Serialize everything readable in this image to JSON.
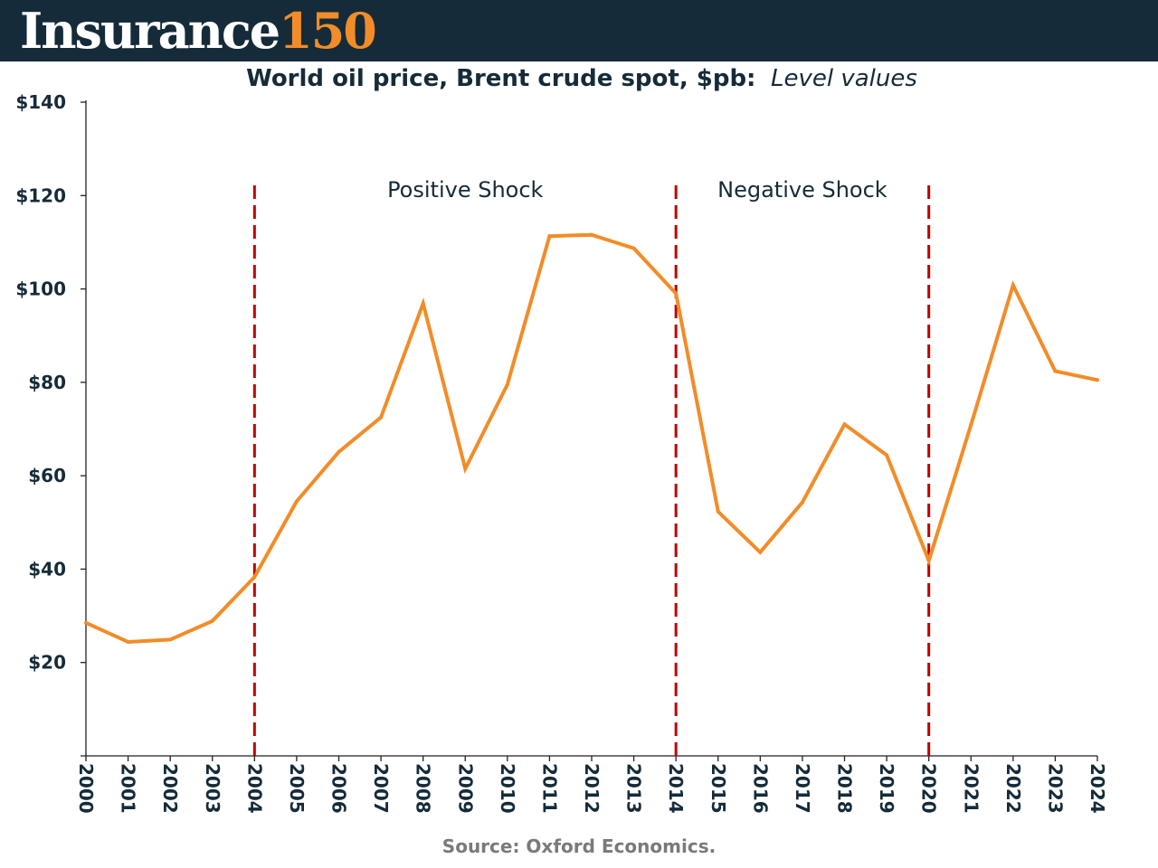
{
  "brand": {
    "word": "Insurance",
    "number": "150",
    "colors": {
      "background": "#152b39",
      "word": "#ffffff",
      "number": "#f28c28"
    }
  },
  "chart_data": {
    "type": "line",
    "title": "World oil price, Brent crude spot, $pb:",
    "subtitle": "Level values",
    "xlabel": "",
    "ylabel": "",
    "categories": [
      "2000",
      "2001",
      "2002",
      "2003",
      "2004",
      "2005",
      "2006",
      "2007",
      "2008",
      "2009",
      "2010",
      "2011",
      "2012",
      "2013",
      "2014",
      "2015",
      "2016",
      "2017",
      "2018",
      "2019",
      "2020",
      "2021",
      "2022",
      "2023",
      "2024"
    ],
    "series": [
      {
        "values": [
          28.5,
          24.4,
          24.9,
          28.9,
          38.3,
          54.5,
          65.1,
          72.5,
          96.9,
          61.5,
          79.5,
          111.3,
          111.6,
          108.7,
          99.0,
          52.3,
          43.6,
          54.3,
          71.0,
          64.4,
          41.8,
          70.9,
          100.8,
          82.4,
          80.5
        ],
        "color": "#f28c28"
      }
    ],
    "yticks": [
      20,
      40,
      60,
      80,
      100,
      120,
      140
    ],
    "ytick_labels": [
      "$20",
      "$40",
      "$60",
      "$80",
      "$100",
      "$120",
      "$140"
    ],
    "ylim": [
      0,
      140
    ],
    "grid": false,
    "legend": "none",
    "shock_lines": {
      "years": [
        "2004",
        "2014",
        "2020"
      ],
      "color": "#c00000",
      "style": "dashed"
    },
    "annotations": [
      {
        "text": "Positive Shock",
        "between": [
          "2004",
          "2014"
        ]
      },
      {
        "text": "Negative Shock",
        "between": [
          "2014",
          "2020"
        ]
      }
    ],
    "source": "Source: Oxford Economics."
  }
}
